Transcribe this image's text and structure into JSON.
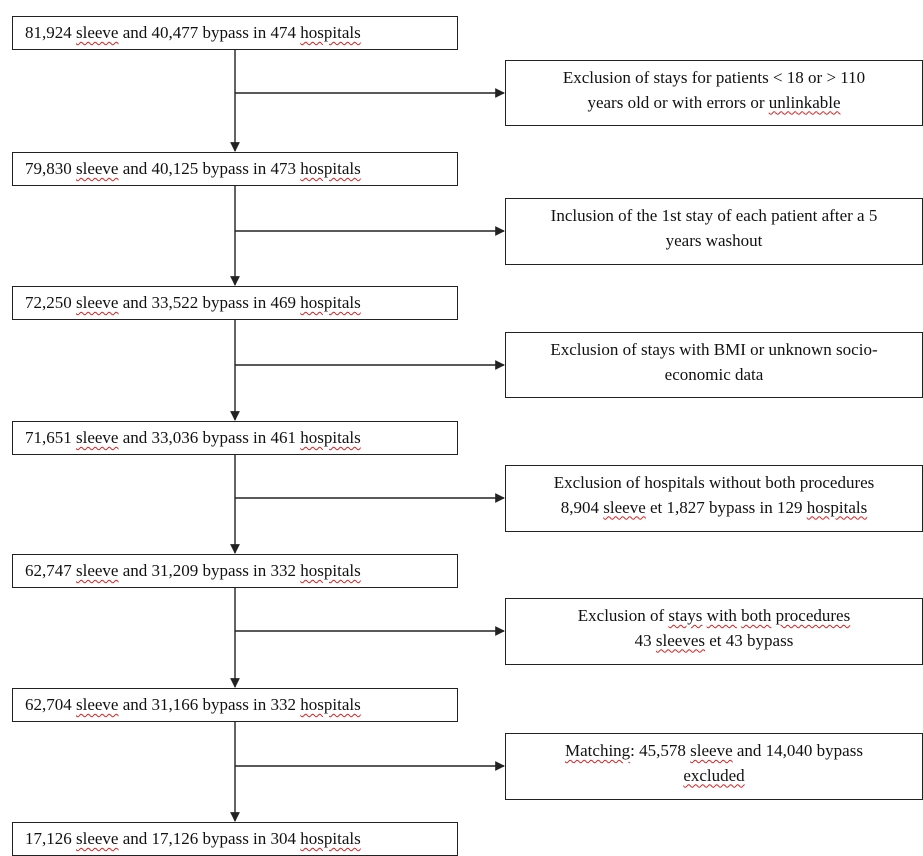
{
  "main_boxes": [
    {
      "parts": [
        {
          "t": "81,924 "
        },
        {
          "t": "sleeve",
          "sq": true
        },
        {
          "t": " and 40,477 bypass in 474 "
        },
        {
          "t": "hospitals",
          "sq": true
        }
      ]
    },
    {
      "parts": [
        {
          "t": "79,830 "
        },
        {
          "t": "sleeve",
          "sq": true
        },
        {
          "t": " and 40,125 bypass in 473 "
        },
        {
          "t": "hospitals",
          "sq": true
        }
      ]
    },
    {
      "parts": [
        {
          "t": "72,250 "
        },
        {
          "t": "sleeve",
          "sq": true
        },
        {
          "t": " and 33,522 bypass in 469 "
        },
        {
          "t": "hospitals",
          "sq": true
        }
      ]
    },
    {
      "parts": [
        {
          "t": "71,651 "
        },
        {
          "t": "sleeve",
          "sq": true
        },
        {
          "t": " and 33,036 bypass in 461 "
        },
        {
          "t": "hospitals",
          "sq": true
        }
      ]
    },
    {
      "parts": [
        {
          "t": "62,747 "
        },
        {
          "t": "sleeve",
          "sq": true
        },
        {
          "t": " and 31,209 bypass in 332 "
        },
        {
          "t": "hospitals",
          "sq": true
        }
      ]
    },
    {
      "parts": [
        {
          "t": "62,704 "
        },
        {
          "t": "sleeve",
          "sq": true
        },
        {
          "t": " and 31,166 bypass in 332 "
        },
        {
          "t": "hospitals",
          "sq": true
        }
      ]
    },
    {
      "parts": [
        {
          "t": "17,126 "
        },
        {
          "t": "sleeve",
          "sq": true
        },
        {
          "t": " and  17,126 bypass in 304 "
        },
        {
          "t": "hospitals",
          "sq": true
        }
      ]
    }
  ],
  "side_boxes": [
    {
      "lines": [
        [
          {
            "t": "Exclusion of stays for patients < 18 or > 110"
          }
        ],
        [
          {
            "t": "years old or with errors or "
          },
          {
            "t": "unlinkable",
            "sq": true
          }
        ]
      ]
    },
    {
      "lines": [
        [
          {
            "t": "Inclusion of the 1st stay of each patient after a 5"
          }
        ],
        [
          {
            "t": "years washout"
          }
        ]
      ]
    },
    {
      "lines": [
        [
          {
            "t": "Exclusion of stays with BMI or unknown socio-"
          }
        ],
        [
          {
            "t": "economic data"
          }
        ]
      ]
    },
    {
      "lines": [
        [
          {
            "t": "Exclusion of hospitals without both procedures"
          }
        ],
        [
          {
            "t": "8,904 "
          },
          {
            "t": "sleeve",
            "sq": true
          },
          {
            "t": " et 1,827 bypass in 129 "
          },
          {
            "t": "hospitals",
            "sq": true
          }
        ]
      ]
    },
    {
      "lines": [
        [
          {
            "t": "Exclusion of "
          },
          {
            "t": "stays",
            "sq": true
          },
          {
            "t": " "
          },
          {
            "t": "with",
            "sq": true
          },
          {
            "t": " "
          },
          {
            "t": "both",
            "sq": true
          },
          {
            "t": " "
          },
          {
            "t": "procedures",
            "sq": true
          }
        ],
        [
          {
            "t": "43 "
          },
          {
            "t": "sleeves",
            "sq": true
          },
          {
            "t": " et 43 bypass"
          }
        ]
      ]
    },
    {
      "lines": [
        [
          {
            "t": "Matching",
            "sq": true
          },
          {
            "t": ": 45,578 "
          },
          {
            "t": "sleeve",
            "sq": true
          },
          {
            "t": " and 14,040 bypass"
          }
        ],
        [
          {
            "t": "excluded",
            "sq": true
          }
        ]
      ]
    }
  ],
  "colors": {
    "line": "#222222",
    "spellcheck": "#d62020"
  }
}
